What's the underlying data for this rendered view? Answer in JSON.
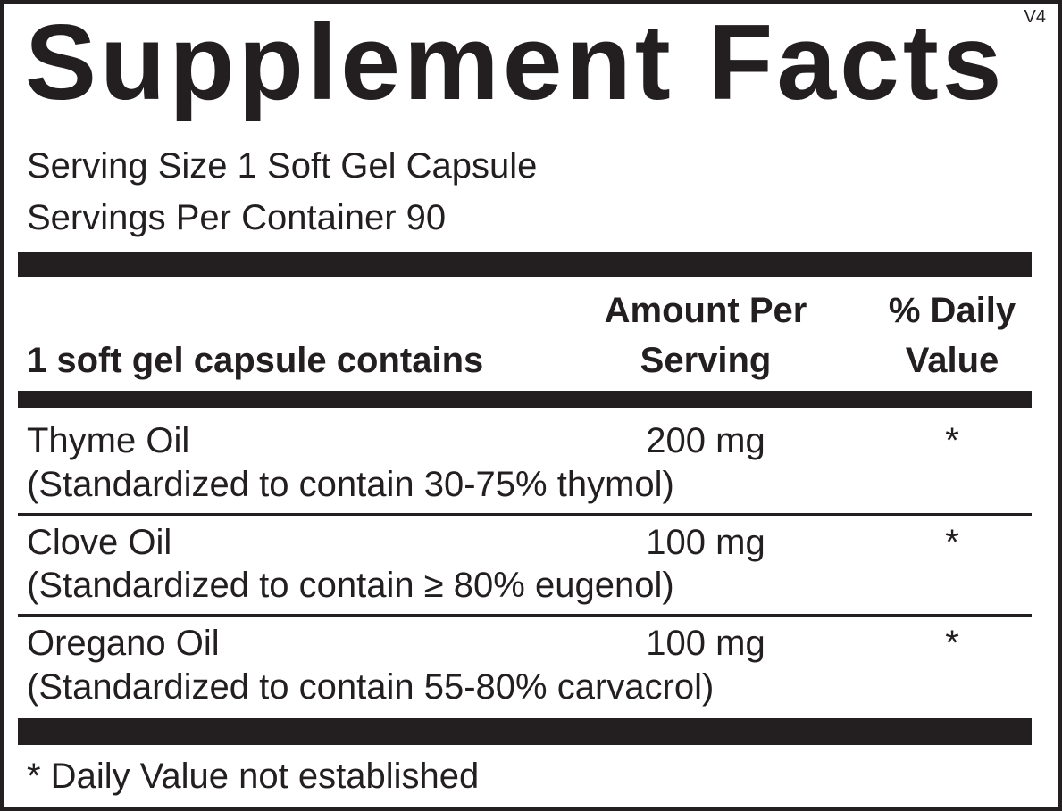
{
  "version": "V4",
  "title": "Supplement Facts",
  "serving_size": "Serving Size 1 Soft Gel Capsule",
  "servings_per_container": "Servings Per Container 90",
  "header": {
    "contains": "1 soft gel capsule contains",
    "amount_line1": "Amount Per",
    "amount_line2": "Serving",
    "dv_line1": "% Daily",
    "dv_line2": "Value"
  },
  "rows": [
    {
      "name": "Thyme Oil",
      "detail": "(Standardized to contain 30-75% thymol)",
      "amount": "200 mg",
      "dv": "*"
    },
    {
      "name": "Clove Oil",
      "detail": "(Standardized to contain ≥ 80% eugenol)",
      "amount": "100 mg",
      "dv": "*"
    },
    {
      "name": "Oregano Oil",
      "detail": "(Standardized to contain 55-80% carvacrol)",
      "amount": "100 mg",
      "dv": "*"
    }
  ],
  "footnote": "* Daily Value not established",
  "colors": {
    "ink": "#231f20",
    "background": "#ffffff"
  }
}
